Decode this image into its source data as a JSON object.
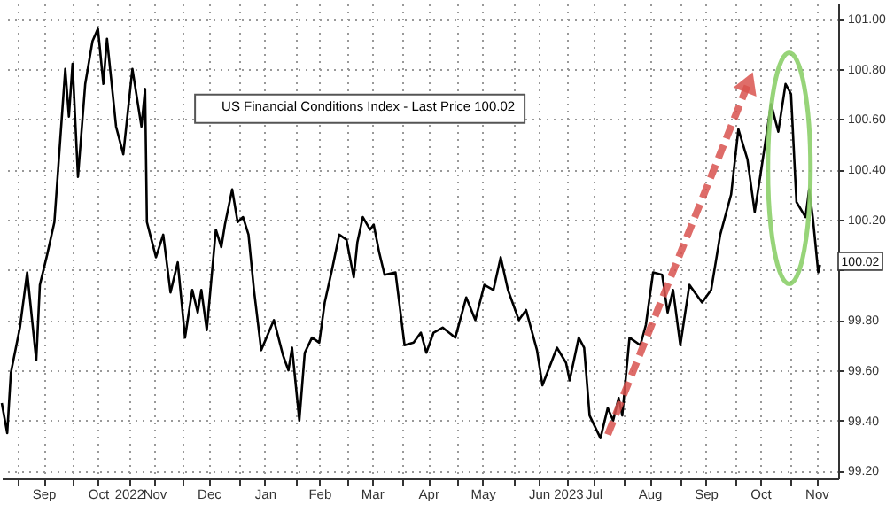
{
  "chart_data": {
    "type": "line",
    "x": [
      "2022-08-23",
      "2022-08-26",
      "2022-08-28",
      "2022-09-02",
      "2022-09-06",
      "2022-09-08",
      "2022-09-11",
      "2022-09-13",
      "2022-09-17",
      "2022-09-21",
      "2022-09-27",
      "2022-09-29",
      "2022-10-01",
      "2022-10-04",
      "2022-10-08",
      "2022-10-12",
      "2022-10-15",
      "2022-10-18",
      "2022-10-20",
      "2022-10-25",
      "2022-10-29",
      "2022-11-03",
      "2022-11-08",
      "2022-11-10",
      "2022-11-11",
      "2022-11-16",
      "2022-11-20",
      "2022-11-24",
      "2022-11-28",
      "2022-12-02",
      "2022-12-06",
      "2022-12-09",
      "2022-12-11",
      "2022-12-14",
      "2022-12-19",
      "2022-12-22",
      "2022-12-24",
      "2022-12-28",
      "2022-12-31",
      "2023-01-03",
      "2023-01-06",
      "2023-01-09",
      "2023-01-13",
      "2023-01-20",
      "2023-01-25",
      "2023-01-28",
      "2023-01-30",
      "2023-02-03",
      "2023-02-06",
      "2023-02-10",
      "2023-02-14",
      "2023-02-17",
      "2023-02-21",
      "2023-02-25",
      "2023-03-01",
      "2023-03-05",
      "2023-03-07",
      "2023-03-10",
      "2023-03-14",
      "2023-03-16",
      "2023-03-19",
      "2023-03-22",
      "2023-03-28",
      "2023-04-02",
      "2023-04-07",
      "2023-04-11",
      "2023-04-14",
      "2023-04-18",
      "2023-04-23",
      "2023-04-30",
      "2023-05-06",
      "2023-05-11",
      "2023-05-16",
      "2023-05-21",
      "2023-05-25",
      "2023-05-29",
      "2023-06-04",
      "2023-06-08",
      "2023-06-14",
      "2023-06-17",
      "2023-06-25",
      "2023-06-30",
      "2023-07-02",
      "2023-07-07",
      "2023-07-10",
      "2023-07-13",
      "2023-07-19",
      "2023-07-23",
      "2023-07-26",
      "2023-07-29",
      "2023-07-31",
      "2023-08-04",
      "2023-08-10",
      "2023-08-13",
      "2023-08-17",
      "2023-08-22",
      "2023-08-25",
      "2023-08-28",
      "2023-09-01",
      "2023-09-06",
      "2023-09-13",
      "2023-09-18",
      "2023-09-23",
      "2023-09-29",
      "2023-10-03",
      "2023-10-08",
      "2023-10-12",
      "2023-10-15",
      "2023-10-21",
      "2023-10-25",
      "2023-10-29",
      "2023-11-01",
      "2023-11-04",
      "2023-11-09",
      "2023-11-11",
      "2023-11-13",
      "2023-11-16",
      "2023-11-17"
    ],
    "series": [
      {
        "name": "US Financial Conditions Index - Last Price 100.02",
        "color": "#000000",
        "values": [
          99.47,
          99.35,
          99.59,
          99.77,
          99.99,
          99.85,
          99.64,
          99.94,
          100.06,
          100.19,
          100.8,
          100.61,
          100.82,
          100.37,
          100.74,
          100.91,
          100.96,
          100.74,
          100.92,
          100.57,
          100.46,
          100.8,
          100.57,
          100.72,
          100.19,
          100.05,
          100.14,
          99.91,
          100.03,
          99.73,
          99.92,
          99.83,
          99.92,
          99.76,
          100.16,
          100.09,
          100.18,
          100.32,
          100.19,
          100.21,
          100.14,
          99.92,
          99.68,
          99.8,
          99.66,
          99.6,
          99.69,
          99.4,
          99.67,
          99.73,
          99.71,
          99.87,
          100.0,
          100.14,
          100.12,
          99.97,
          100.11,
          100.21,
          100.16,
          100.18,
          100.07,
          99.98,
          99.99,
          99.7,
          99.71,
          99.75,
          99.67,
          99.75,
          99.77,
          99.73,
          99.89,
          99.8,
          99.94,
          99.92,
          100.05,
          99.92,
          99.8,
          99.84,
          99.68,
          99.54,
          99.69,
          99.63,
          99.56,
          99.73,
          99.69,
          99.42,
          99.33,
          99.45,
          99.4,
          99.49,
          99.42,
          99.73,
          99.7,
          99.78,
          99.99,
          99.98,
          99.83,
          99.92,
          99.7,
          99.94,
          99.87,
          99.92,
          100.14,
          100.3,
          100.56,
          100.44,
          100.23,
          100.37,
          100.66,
          100.55,
          100.74,
          100.7,
          100.27,
          100.21,
          100.32,
          100.21,
          99.99,
          100.02
        ]
      }
    ],
    "xlim": [
      "2022-08-23",
      "2023-11-27"
    ],
    "xticks": [
      {
        "value": "2022-09-01",
        "label": null
      },
      {
        "value": "2022-09-15",
        "label": "Sep"
      },
      {
        "value": "2022-10-01",
        "label": null
      },
      {
        "value": "2022-10-15",
        "label": "Oct"
      },
      {
        "value": "2022-11-01",
        "label": "2022"
      },
      {
        "value": "2022-11-15",
        "label": "Nov"
      },
      {
        "value": "2022-12-01",
        "label": null
      },
      {
        "value": "2022-12-15",
        "label": "Dec"
      },
      {
        "value": "2023-01-01",
        "label": null
      },
      {
        "value": "2023-01-15",
        "label": "Jan"
      },
      {
        "value": "2023-02-01",
        "label": null
      },
      {
        "value": "2023-02-14",
        "label": "Feb"
      },
      {
        "value": "2023-03-01",
        "label": null
      },
      {
        "value": "2023-03-15",
        "label": "Mar"
      },
      {
        "value": "2023-04-01",
        "label": null
      },
      {
        "value": "2023-04-15",
        "label": "Apr"
      },
      {
        "value": "2023-05-01",
        "label": null
      },
      {
        "value": "2023-05-15",
        "label": "May"
      },
      {
        "value": "2023-06-01",
        "label": null
      },
      {
        "value": "2023-06-15",
        "label": "Jun"
      },
      {
        "value": "2023-07-01",
        "label": "2023"
      },
      {
        "value": "2023-07-15",
        "label": "Jul"
      },
      {
        "value": "2023-08-01",
        "label": null
      },
      {
        "value": "2023-08-15",
        "label": "Aug"
      },
      {
        "value": "2023-09-01",
        "label": null
      },
      {
        "value": "2023-09-15",
        "label": "Sep"
      },
      {
        "value": "2023-10-01",
        "label": null
      },
      {
        "value": "2023-10-15",
        "label": "Oct"
      },
      {
        "value": "2023-11-01",
        "label": null
      },
      {
        "value": "2023-11-15",
        "label": "Nov"
      }
    ],
    "ylim": [
      99.17,
      101.06
    ],
    "yticks": [
      {
        "value": 99.2,
        "label": "99.20"
      },
      {
        "value": 99.4,
        "label": "99.40"
      },
      {
        "value": 99.6,
        "label": "99.60"
      },
      {
        "value": 99.8,
        "label": "99.80"
      },
      {
        "value": 100.0,
        "label": null
      },
      {
        "value": 100.2,
        "label": "100.20"
      },
      {
        "value": 100.4,
        "label": "100.40"
      },
      {
        "value": 100.6,
        "label": "100.60"
      },
      {
        "value": 100.8,
        "label": "100.80"
      },
      {
        "value": 101.0,
        "label": "101.00"
      }
    ],
    "annotations": [
      {
        "text": "100.02",
        "x": "2023-11-17",
        "y": 100.02
      }
    ],
    "grid": true,
    "legend": "top left",
    "marker": "none",
    "line_style": "solid"
  }
}
